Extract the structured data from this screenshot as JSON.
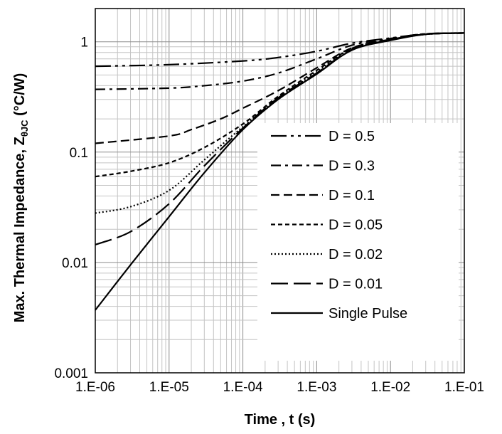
{
  "chart_data": {
    "type": "line",
    "title": "",
    "xlabel": "Time , t (s)",
    "ylabel": "Max. Thermal Impedance, Z",
    "ylabel_subscript": "θJC",
    "ylabel_unit": " (°C/W)",
    "x_scale": "log",
    "y_scale": "log",
    "xlim": [
      1e-06,
      0.1
    ],
    "ylim": [
      0.001,
      2
    ],
    "grid": true,
    "legend_position": "bottom-right",
    "x_ticks": [
      {
        "value": 1e-06,
        "label": "1.E-06"
      },
      {
        "value": 1e-05,
        "label": "1.E-05"
      },
      {
        "value": 0.0001,
        "label": "1.E-04"
      },
      {
        "value": 0.001,
        "label": "1.E-03"
      },
      {
        "value": 0.01,
        "label": "1.E-02"
      },
      {
        "value": 0.1,
        "label": "1.E-01"
      }
    ],
    "y_ticks": [
      {
        "value": 0.001,
        "label": "0.001"
      },
      {
        "value": 0.01,
        "label": "0.01"
      },
      {
        "value": 0.1,
        "label": "0.1"
      },
      {
        "value": 1,
        "label": "1"
      }
    ],
    "series": [
      {
        "name": "D = 0.5",
        "dash": "22,6,4,6,4,6",
        "x": [
          1e-06,
          1e-05,
          0.0001,
          0.0003,
          0.001,
          0.003,
          0.01,
          0.03,
          0.1
        ],
        "y": [
          0.6,
          0.62,
          0.67,
          0.72,
          0.82,
          0.97,
          1.08,
          1.18,
          1.2
        ]
      },
      {
        "name": "D = 0.3",
        "dash": "14,6,4,6",
        "x": [
          1e-06,
          1e-05,
          3e-05,
          0.0001,
          0.0003,
          0.001,
          0.003,
          0.01,
          0.03,
          0.1
        ],
        "y": [
          0.37,
          0.38,
          0.4,
          0.44,
          0.52,
          0.7,
          0.93,
          1.07,
          1.18,
          1.2
        ]
      },
      {
        "name": "D = 0.1",
        "dash": "12,6",
        "x": [
          1e-06,
          1e-05,
          2e-05,
          5e-05,
          0.0001,
          0.0003,
          0.001,
          0.003,
          0.01,
          0.03,
          0.1
        ],
        "y": [
          0.12,
          0.14,
          0.16,
          0.2,
          0.25,
          0.36,
          0.58,
          0.88,
          1.05,
          1.17,
          1.2
        ]
      },
      {
        "name": "D = 0.05",
        "dash": "6,4",
        "x": [
          1e-06,
          3e-06,
          1e-05,
          3e-05,
          0.0001,
          0.0003,
          0.001,
          0.003,
          0.01,
          0.03,
          0.1
        ],
        "y": [
          0.06,
          0.067,
          0.08,
          0.11,
          0.18,
          0.32,
          0.55,
          0.87,
          1.05,
          1.17,
          1.2
        ]
      },
      {
        "name": "D = 0.02",
        "dash": "2,3",
        "x": [
          1e-06,
          3e-06,
          1e-05,
          3e-05,
          0.0001,
          0.0003,
          0.001,
          0.003,
          0.01,
          0.03,
          0.1
        ],
        "y": [
          0.028,
          0.032,
          0.045,
          0.085,
          0.17,
          0.31,
          0.53,
          0.86,
          1.04,
          1.17,
          1.2
        ]
      },
      {
        "name": "D = 0.01",
        "dash": "24,8",
        "x": [
          1e-06,
          3e-06,
          1e-05,
          3e-05,
          0.0001,
          0.0003,
          0.001,
          0.003,
          0.01,
          0.03,
          0.1
        ],
        "y": [
          0.0145,
          0.019,
          0.034,
          0.075,
          0.165,
          0.31,
          0.52,
          0.85,
          1.04,
          1.17,
          1.2
        ]
      },
      {
        "name": "Single Pulse",
        "dash": "",
        "x": [
          1e-06,
          3e-06,
          1e-05,
          3e-05,
          0.0001,
          0.0003,
          0.001,
          0.003,
          0.01,
          0.03,
          0.1
        ],
        "y": [
          0.0037,
          0.0095,
          0.026,
          0.065,
          0.16,
          0.3,
          0.51,
          0.84,
          1.03,
          1.17,
          1.2
        ]
      }
    ]
  }
}
